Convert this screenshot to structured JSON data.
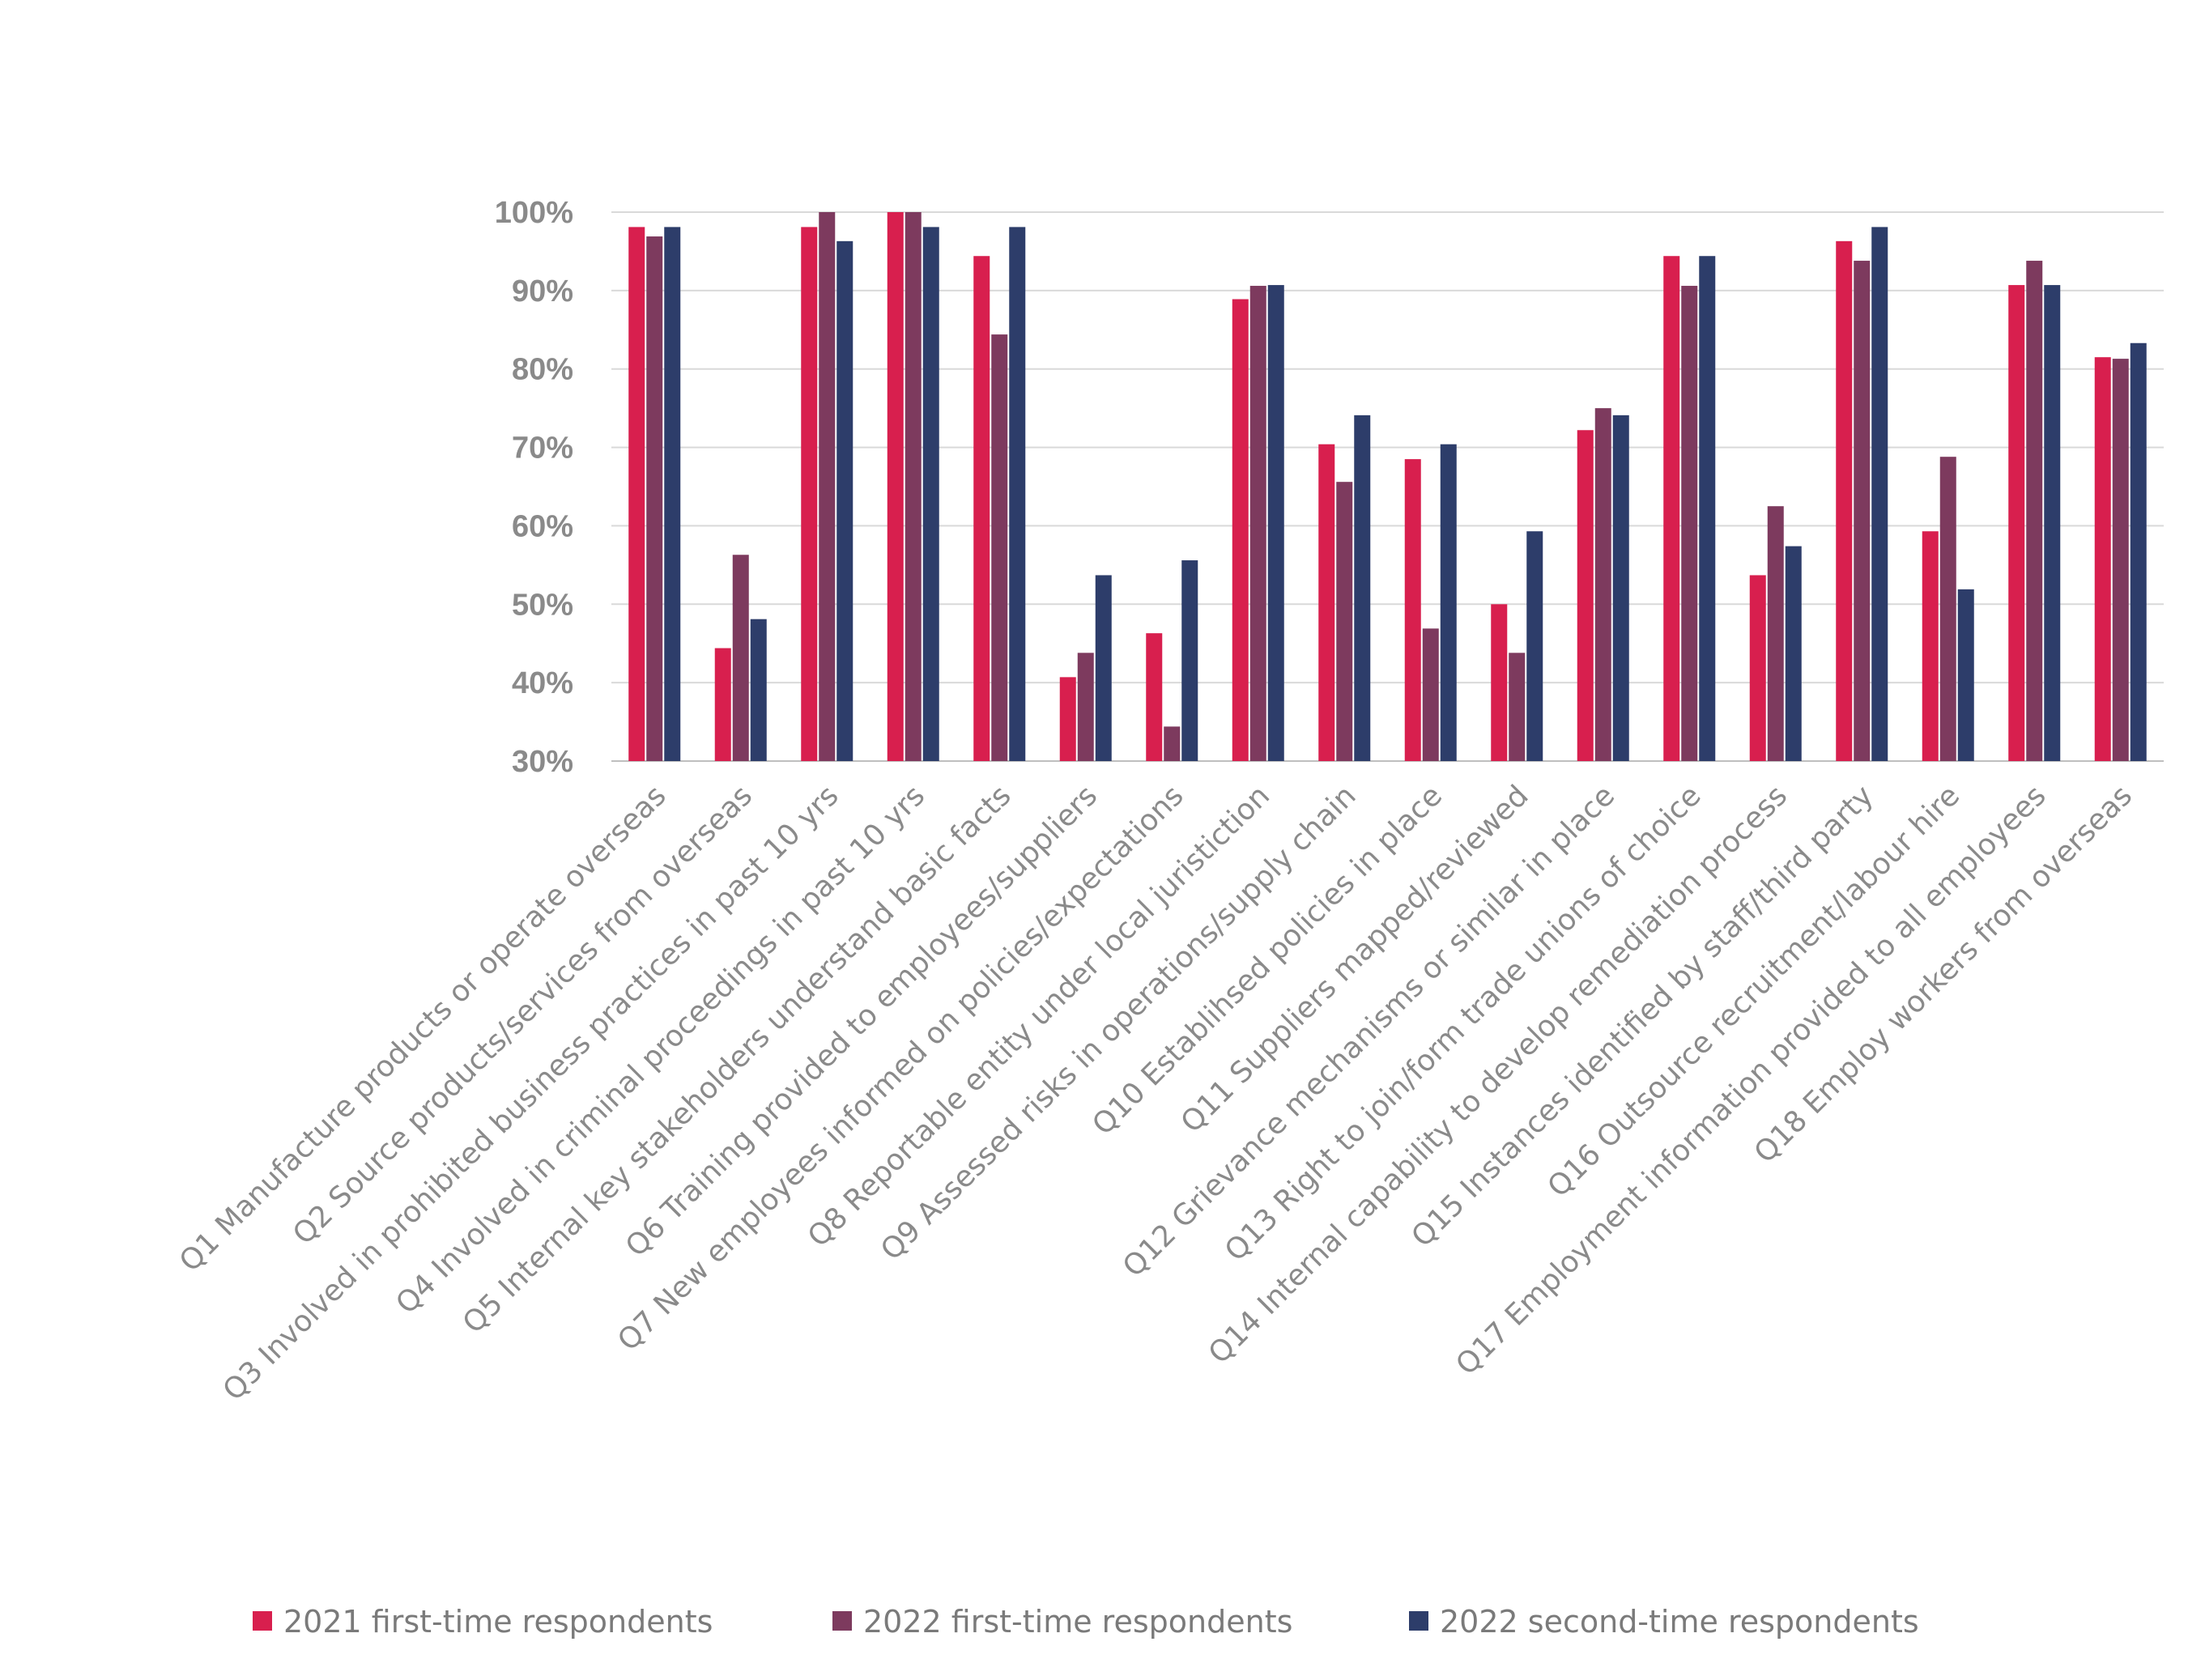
{
  "chart_data": {
    "type": "bar",
    "title": "",
    "xlabel": "",
    "ylabel": "",
    "ylim": [
      30,
      100
    ],
    "yticks": [
      30,
      40,
      50,
      60,
      70,
      80,
      90,
      100
    ],
    "ytick_suffix": "%",
    "grid": true,
    "legend_position": "bottom",
    "categories": [
      "Q1 Manufacture products or operate overseas",
      "Q2 Source products/services from overseas",
      "Q3 Involved in prohibited business practices in past 10 yrs",
      "Q4 Involved in criminal proceedings in past 10 yrs",
      "Q5 Internal key stakeholders understand basic facts",
      "Q6 Training provided to employees/suppliers",
      "Q7 New employees informed on policies/expectations",
      "Q8 Reportable entity under local juristiction",
      "Q9 Assessed risks in operations/supply chain",
      "Q10 Establihsed policies in place",
      "Q11 Suppliers mapped/reviewed",
      "Q12 Grievance mechanisms or similar in place",
      "Q13 Right to join/form trade unions of choice",
      "Q14 Internal capability to develop remediation process",
      "Q15 Instances identified by staff/third party",
      "Q16 Outsource recruitment/labour hire",
      "Q17 Employment information provided to all employees",
      "Q18 Employ workers from overseas"
    ],
    "series": [
      {
        "name": "2021 first-time respondents",
        "color": "#d81f4e",
        "values": [
          98.1,
          44.4,
          98.1,
          100,
          94.4,
          40.7,
          46.3,
          88.9,
          70.4,
          68.5,
          50.0,
          72.2,
          94.4,
          53.7,
          96.3,
          59.3,
          90.7,
          81.5
        ]
      },
      {
        "name": "2022 first-time respondents",
        "color": "#7d3a5e",
        "values": [
          96.9,
          56.3,
          100,
          100,
          84.4,
          43.8,
          34.4,
          90.6,
          65.6,
          46.9,
          43.8,
          75.0,
          90.6,
          62.5,
          93.8,
          68.8,
          93.8,
          81.3
        ]
      },
      {
        "name": "2022 second-time respondents",
        "color": "#2d3d6a",
        "values": [
          98.1,
          48.1,
          96.3,
          98.1,
          98.1,
          53.7,
          55.6,
          90.7,
          74.1,
          70.4,
          59.3,
          74.1,
          94.4,
          57.4,
          98.1,
          51.9,
          90.7,
          83.3
        ]
      }
    ]
  }
}
